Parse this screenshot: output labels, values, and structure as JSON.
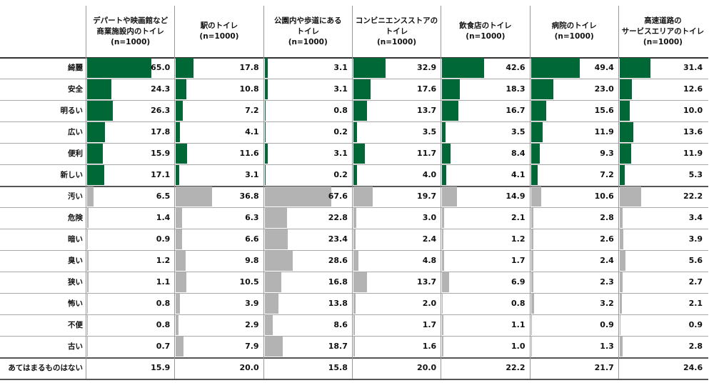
{
  "table": {
    "columns": [
      {
        "lines": [
          "デパートや映画館など",
          "商業施設内のトイレ",
          "(n=1000)"
        ]
      },
      {
        "lines": [
          "駅のトイレ",
          "(n=1000)"
        ]
      },
      {
        "lines": [
          "公園内や歩道にある",
          "トイレ",
          "(n=1000)"
        ]
      },
      {
        "lines": [
          "コンビニエンスストアの",
          "トイレ",
          "(n=1000)"
        ]
      },
      {
        "lines": [
          "飲食店のトイレ",
          "(n=1000)"
        ]
      },
      {
        "lines": [
          "病院のトイレ",
          "(n=1000)"
        ]
      },
      {
        "lines": [
          "高速道路の",
          "サービスエリアのトイレ",
          "(n=1000)"
        ]
      }
    ],
    "groups": [
      {
        "color": "#006837",
        "bars": true,
        "rows": [
          {
            "label": "綺麗",
            "values": [
              65,
              17.8,
              3.1,
              32.9,
              42.6,
              49.4,
              31.4
            ],
            "value_labels": [
              "65.0",
              "17.8",
              "3.1",
              "32.9",
              "42.6",
              "49.4",
              "31.4"
            ]
          },
          {
            "label": "安全",
            "values": [
              24.3,
              10.8,
              3.1,
              17.6,
              18.3,
              23,
              12.6
            ],
            "value_labels": [
              "24.3",
              "10.8",
              "3.1",
              "17.6",
              "18.3",
              "23.0",
              "12.6"
            ]
          },
          {
            "label": "明るい",
            "values": [
              26.3,
              7.2,
              0.8,
              13.7,
              16.7,
              15.6,
              10
            ],
            "value_labels": [
              "26.3",
              "7.2",
              "0.8",
              "13.7",
              "16.7",
              "15.6",
              "10.0"
            ]
          },
          {
            "label": "広い",
            "values": [
              17.8,
              4.1,
              0.2,
              3.5,
              3.5,
              11.9,
              13.6
            ],
            "value_labels": [
              "17.8",
              "4.1",
              "0.2",
              "3.5",
              "3.5",
              "11.9",
              "13.6"
            ]
          },
          {
            "label": "便利",
            "values": [
              15.9,
              11.6,
              3.1,
              11.7,
              8.4,
              9.3,
              11.9
            ],
            "value_labels": [
              "15.9",
              "11.6",
              "3.1",
              "11.7",
              "8.4",
              "9.3",
              "11.9"
            ]
          },
          {
            "label": "新しい",
            "values": [
              17.1,
              3.1,
              0.2,
              4,
              4.1,
              7.2,
              5.3
            ],
            "value_labels": [
              "17.1",
              "3.1",
              "0.2",
              "4.0",
              "4.1",
              "7.2",
              "5.3"
            ]
          }
        ]
      },
      {
        "color": "#b3b3b3",
        "bars": true,
        "rows": [
          {
            "label": "汚い",
            "values": [
              6.5,
              36.8,
              67.6,
              19.7,
              14.9,
              10.6,
              22.2
            ],
            "value_labels": [
              "6.5",
              "36.8",
              "67.6",
              "19.7",
              "14.9",
              "10.6",
              "22.2"
            ]
          },
          {
            "label": "危険",
            "values": [
              1.4,
              6.3,
              22.8,
              3,
              2.1,
              2.8,
              3.4
            ],
            "value_labels": [
              "1.4",
              "6.3",
              "22.8",
              "3.0",
              "2.1",
              "2.8",
              "3.4"
            ]
          },
          {
            "label": "暗い",
            "values": [
              0.9,
              6.6,
              23.4,
              2.4,
              1.2,
              2.6,
              3.9
            ],
            "value_labels": [
              "0.9",
              "6.6",
              "23.4",
              "2.4",
              "1.2",
              "2.6",
              "3.9"
            ]
          },
          {
            "label": "臭い",
            "values": [
              1.2,
              9.8,
              28.6,
              4.8,
              1.7,
              2.4,
              5.6
            ],
            "value_labels": [
              "1.2",
              "9.8",
              "28.6",
              "4.8",
              "1.7",
              "2.4",
              "5.6"
            ]
          },
          {
            "label": "狭い",
            "values": [
              1.1,
              10.5,
              16.8,
              13.7,
              6.9,
              2.3,
              2.7
            ],
            "value_labels": [
              "1.1",
              "10.5",
              "16.8",
              "13.7",
              "6.9",
              "2.3",
              "2.7"
            ]
          },
          {
            "label": "怖い",
            "values": [
              0.8,
              3.9,
              13.8,
              2,
              0.8,
              3.2,
              2.1
            ],
            "value_labels": [
              "0.8",
              "3.9",
              "13.8",
              "2.0",
              "0.8",
              "3.2",
              "2.1"
            ]
          },
          {
            "label": "不便",
            "values": [
              0.8,
              2.9,
              8.6,
              1.7,
              1.1,
              0.9,
              0.9
            ],
            "value_labels": [
              "0.8",
              "2.9",
              "8.6",
              "1.7",
              "1.1",
              "0.9",
              "0.9"
            ]
          },
          {
            "label": "古い",
            "values": [
              0.7,
              7.9,
              18.7,
              1.6,
              1,
              1.3,
              2.8
            ],
            "value_labels": [
              "0.7",
              "7.9",
              "18.7",
              "1.6",
              "1.0",
              "1.3",
              "2.8"
            ]
          }
        ]
      },
      {
        "bars": false,
        "rows": [
          {
            "label": "あてはまるものはない",
            "values": [
              15.9,
              20,
              15.8,
              20,
              22.2,
              21.7,
              24.6
            ],
            "value_labels": [
              "15.9",
              "20.0",
              "15.8",
              "20.0",
              "22.2",
              "21.7",
              "24.6"
            ]
          }
        ]
      }
    ]
  }
}
